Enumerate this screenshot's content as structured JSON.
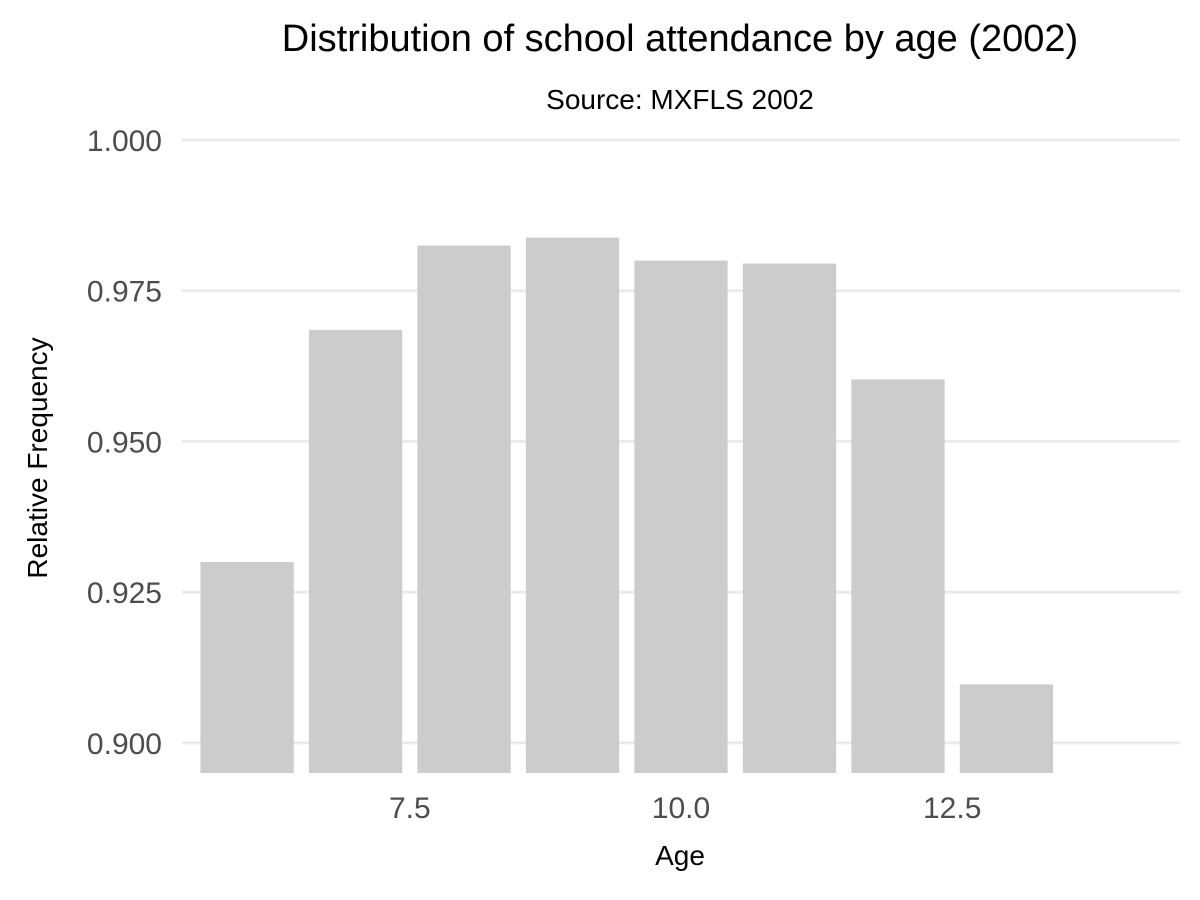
{
  "chart_data": {
    "type": "bar",
    "title": "Distribution of school attendance by age (2002)",
    "subtitle": "Source: MXFLS 2002",
    "xlabel": "Age",
    "ylabel": "Relative Frequency",
    "x": [
      6,
      7,
      8,
      9,
      10,
      11,
      12,
      13
    ],
    "values": [
      0.93,
      0.9685,
      0.9825,
      0.9838,
      0.98,
      0.9795,
      0.9603,
      0.9097
    ],
    "x_ticks": [
      7.5,
      10.0,
      12.5
    ],
    "x_tick_labels": [
      "7.5",
      "10.0",
      "12.5"
    ],
    "y_ticks": [
      0.9,
      0.925,
      0.95,
      0.975,
      1.0
    ],
    "y_tick_labels": [
      "0.900",
      "0.925",
      "0.950",
      "0.975",
      "1.000"
    ],
    "xlim": [
      5.4,
      14.6
    ],
    "ylim": [
      0.895,
      1.0
    ],
    "grid": true,
    "bar_color": "#cccccc",
    "grid_color": "#ebebeb"
  }
}
